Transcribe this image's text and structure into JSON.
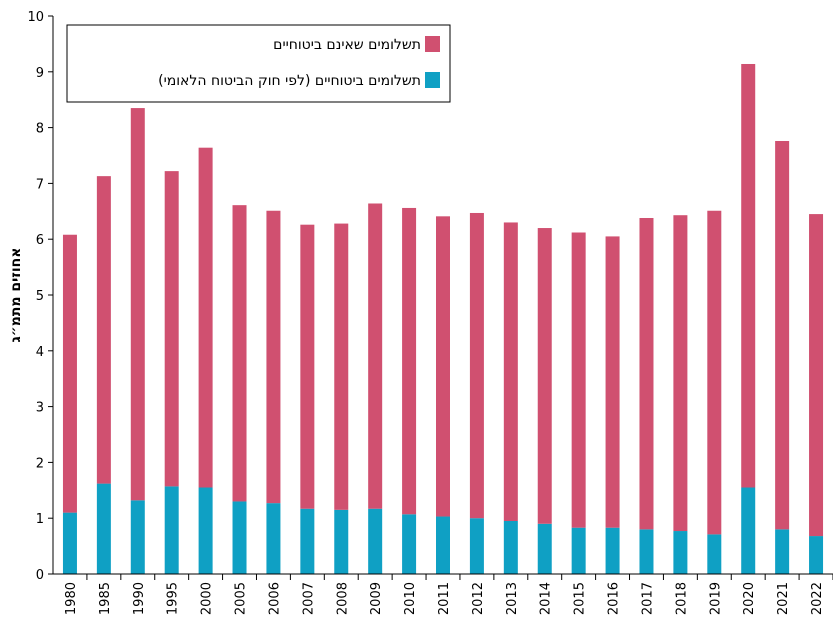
{
  "chart_data": {
    "type": "stacked-bar",
    "y_label": "אחוזים מתמ״ג",
    "categories": [
      "1980",
      "1985",
      "1990",
      "1995",
      "2000",
      "2005",
      "2006",
      "2007",
      "2008",
      "2009",
      "2010",
      "2011",
      "2012",
      "2013",
      "2014",
      "2015",
      "2016",
      "2017",
      "2018",
      "2019",
      "2020",
      "2021",
      "2022"
    ],
    "series": [
      {
        "name": "תשלומים ביטוחיים (לפי חוק הביטוח הלאומי)",
        "color": "#0fa0c4",
        "values": [
          1.1,
          1.62,
          1.32,
          1.57,
          1.55,
          1.3,
          1.27,
          1.17,
          1.15,
          1.17,
          1.07,
          1.03,
          1.0,
          0.95,
          0.9,
          0.83,
          0.83,
          0.8,
          0.77,
          0.71,
          1.55,
          0.8,
          0.68
        ]
      },
      {
        "name": "תשלומים שאינם ביטוחיים",
        "color": "#d05070",
        "values": [
          4.98,
          5.51,
          7.03,
          5.65,
          6.09,
          5.31,
          5.24,
          5.09,
          5.13,
          5.47,
          5.49,
          5.38,
          5.47,
          5.35,
          5.3,
          5.29,
          5.22,
          5.58,
          5.66,
          5.8,
          7.59,
          6.96,
          5.77
        ]
      }
    ],
    "ylim": [
      0,
      10
    ],
    "yticks": [
      0,
      1,
      2,
      3,
      4,
      5,
      6,
      7,
      8,
      9,
      10
    ],
    "grid": false,
    "legend": "upper left"
  }
}
